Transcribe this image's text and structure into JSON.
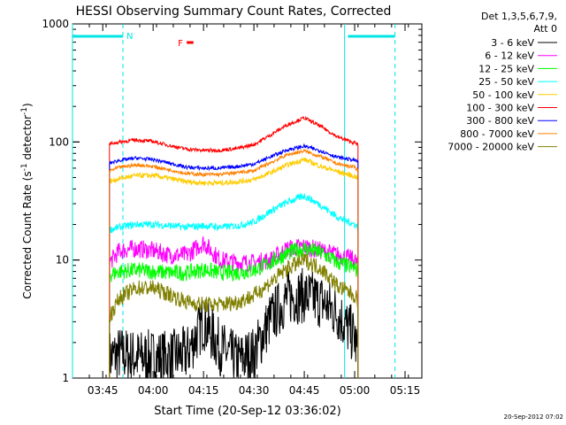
{
  "chart_data": {
    "type": "line",
    "title": "HESSI Observing Summary Count Rates, Corrected",
    "xlabel": "Start Time (20-Sep-12 03:36:02)",
    "ylabel_main": "Corrected Count Rate (s",
    "ylabel_sup1": "-1",
    "ylabel_mid": " detector",
    "ylabel_sup2": "-1",
    "ylabel_end": ")",
    "yscale": "log",
    "ylim": [
      1,
      1000
    ],
    "xlim": [
      "03:36",
      "05:20"
    ],
    "x_ticks": [
      "03:45",
      "04:00",
      "04:15",
      "04:30",
      "04:45",
      "05:00",
      "05:15"
    ],
    "y_ticks": [
      "1",
      "10",
      "100",
      "1000"
    ],
    "legend_header": [
      "Det 1,3,5,6,7,9,",
      "Att 0"
    ],
    "legend_position": "right",
    "footer_date": "20-Sep-2012 07:02",
    "markers": {
      "night_label": "N",
      "flare_label": "F",
      "night_color": "#00e5e5",
      "flare_color": "#ff0000",
      "flare_time": [
        "04:10",
        "04:12"
      ],
      "day_bars": [
        [
          "03:36",
          "03:51"
        ],
        [
          "04:58",
          "05:12"
        ]
      ],
      "night_lines": [
        "03:36",
        "03:51",
        "04:57",
        "05:12"
      ]
    },
    "data_window": [
      "03:47",
      "05:01"
    ],
    "x": [
      "03:47",
      "03:50",
      "03:55",
      "04:00",
      "04:05",
      "04:10",
      "04:15",
      "04:20",
      "04:25",
      "04:30",
      "04:35",
      "04:40",
      "04:45",
      "04:50",
      "04:55",
      "05:00",
      "05:01"
    ],
    "series": [
      {
        "name": "3 - 6 keV",
        "color": "#000000",
        "values": [
          1.5,
          1.6,
          1.5,
          1.5,
          1.5,
          1.6,
          3.0,
          1.8,
          1.4,
          1.6,
          3.2,
          4.8,
          5.0,
          4.5,
          3.5,
          2.2,
          1.5
        ]
      },
      {
        "name": "6 - 12 keV",
        "color": "#ff00ff",
        "values": [
          9.5,
          12,
          12.5,
          12,
          11,
          11,
          14,
          10,
          9.5,
          9.5,
          10,
          12.5,
          13,
          12,
          11,
          10,
          9
        ]
      },
      {
        "name": "12 - 25 keV",
        "color": "#00ff00",
        "values": [
          7.5,
          8.0,
          8.2,
          8.0,
          7.8,
          7.8,
          8.3,
          7.8,
          7.8,
          8.2,
          9.5,
          11.5,
          12.5,
          11.5,
          9.5,
          8.5,
          8.0
        ]
      },
      {
        "name": "25 - 50 keV",
        "color": "#00ffff",
        "values": [
          18,
          19,
          20,
          20,
          19.5,
          19,
          19.5,
          19,
          19.5,
          21,
          26,
          31,
          35,
          29,
          23,
          20,
          19
        ]
      },
      {
        "name": "50 - 100 keV",
        "color": "#ffcc00",
        "values": [
          46,
          49,
          52,
          52,
          49,
          46,
          45,
          45,
          46,
          48,
          55,
          64,
          71,
          62,
          56,
          51,
          50
        ]
      },
      {
        "name": "100 - 300 keV",
        "color": "#ff0000",
        "values": [
          96,
          100,
          104,
          101,
          93,
          87,
          85,
          85,
          88,
          95,
          115,
          140,
          160,
          135,
          110,
          98,
          95
        ]
      },
      {
        "name": "300 - 800 keV",
        "color": "#0000ff",
        "values": [
          66,
          70,
          73,
          71,
          66,
          61,
          60,
          60,
          62,
          65,
          75,
          86,
          92,
          84,
          74,
          70,
          68
        ]
      },
      {
        "name": "800 - 7000 keV",
        "color": "#ff8000",
        "values": [
          57,
          61,
          64,
          62,
          58,
          54,
          53,
          53,
          55,
          57,
          67,
          78,
          84,
          75,
          65,
          61,
          58
        ]
      },
      {
        "name": "7000 - 20000 keV",
        "color": "#808000",
        "values": [
          3.3,
          4.8,
          5.8,
          5.8,
          5.1,
          4.4,
          4.2,
          4.2,
          4.4,
          5.0,
          6.5,
          8.5,
          10,
          8.5,
          6.0,
          5.0,
          4.5
        ]
      }
    ]
  }
}
